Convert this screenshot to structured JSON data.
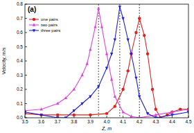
{
  "chart_data": {
    "type": "line",
    "title": "(a)",
    "x_label": "Z, m",
    "y_label": "Velocity, m/s",
    "xlim": [
      3.5,
      4.5
    ],
    "xticks": [
      3.5,
      3.6,
      3.7,
      3.8,
      3.9,
      {
        "value": 4,
        "label": "4.0"
      },
      4.1,
      4.2,
      4.3,
      4.4,
      4.5
    ],
    "ylim": [
      0,
      0.8
    ],
    "yticks": [
      {
        "value": 0,
        "label": "0.0"
      },
      0.1,
      0.2,
      0.3,
      0.4,
      0.5,
      0.6,
      0.7,
      0.8
    ],
    "legend": "upper left",
    "reference_lines": [
      3.95,
      4.08,
      4.2
    ],
    "series": [
      {
        "name": "one pairs",
        "color": "#e0201c",
        "marker": "circle",
        "x": [
          3.5,
          3.6,
          3.7,
          3.8,
          3.9,
          4.0,
          4.05,
          4.1,
          4.13,
          4.15,
          4.18,
          4.2,
          4.23,
          4.25,
          4.28,
          4.3,
          4.33,
          4.37,
          4.4,
          4.45,
          4.5
        ],
        "values": [
          0.03,
          0.02,
          0.02,
          0.02,
          0.02,
          0.03,
          0.08,
          0.2,
          0.33,
          0.45,
          0.6,
          0.7,
          0.58,
          0.45,
          0.2,
          0.06,
          0.0,
          0.02,
          0.04,
          0.06,
          0.06
        ]
      },
      {
        "name": "two pairs",
        "color": "#e040e0",
        "marker": "triangle-up",
        "x": [
          3.5,
          3.6,
          3.7,
          3.75,
          3.8,
          3.85,
          3.88,
          3.9,
          3.93,
          3.95,
          3.97,
          4.0,
          4.03,
          4.05,
          4.1,
          4.15,
          4.2,
          4.3,
          4.4,
          4.5
        ],
        "values": [
          0.05,
          0.06,
          0.1,
          0.14,
          0.2,
          0.3,
          0.38,
          0.48,
          0.64,
          0.77,
          0.64,
          0.45,
          0.27,
          0.15,
          0.04,
          0.01,
          0.0,
          0.02,
          0.04,
          0.06
        ]
      },
      {
        "name": "three pairs",
        "color": "#1f1fd8",
        "marker": "triangle-down",
        "x": [
          3.5,
          3.6,
          3.7,
          3.75,
          3.8,
          3.85,
          3.9,
          3.95,
          4.0,
          4.03,
          4.05,
          4.08,
          4.1,
          4.13,
          4.15,
          4.18,
          4.2,
          4.25,
          4.3,
          4.4,
          4.5
        ],
        "values": [
          0.04,
          0.02,
          0.0,
          0.0,
          0.05,
          0.1,
          0.15,
          0.22,
          0.35,
          0.45,
          0.55,
          0.78,
          0.7,
          0.55,
          0.45,
          0.28,
          0.15,
          0.03,
          0.0,
          0.02,
          0.04
        ]
      }
    ]
  }
}
